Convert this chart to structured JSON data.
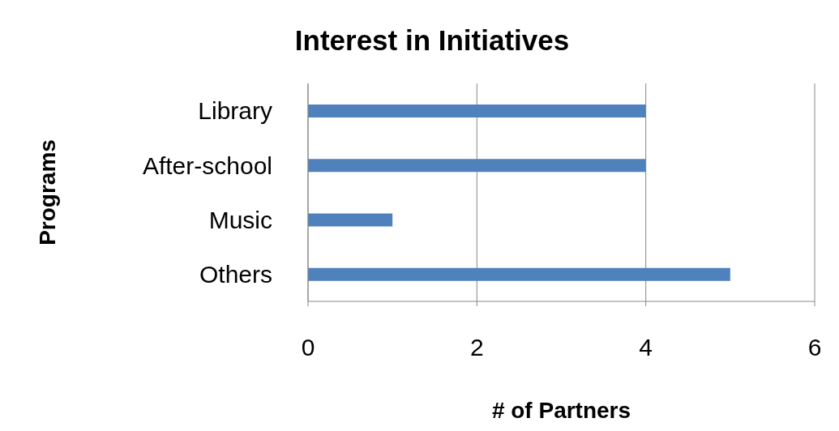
{
  "chart_data": {
    "type": "bar",
    "orientation": "horizontal",
    "title": "Interest in Initiatives",
    "xlabel": "# of Partners",
    "ylabel": "Programs",
    "categories": [
      "Library",
      "After-school",
      "Music",
      "Others"
    ],
    "values": [
      4,
      4,
      1,
      5
    ],
    "color": "#4f81bd",
    "xlim": [
      0,
      6
    ],
    "xticks": [
      0,
      2,
      4,
      6
    ],
    "grid": "x"
  }
}
